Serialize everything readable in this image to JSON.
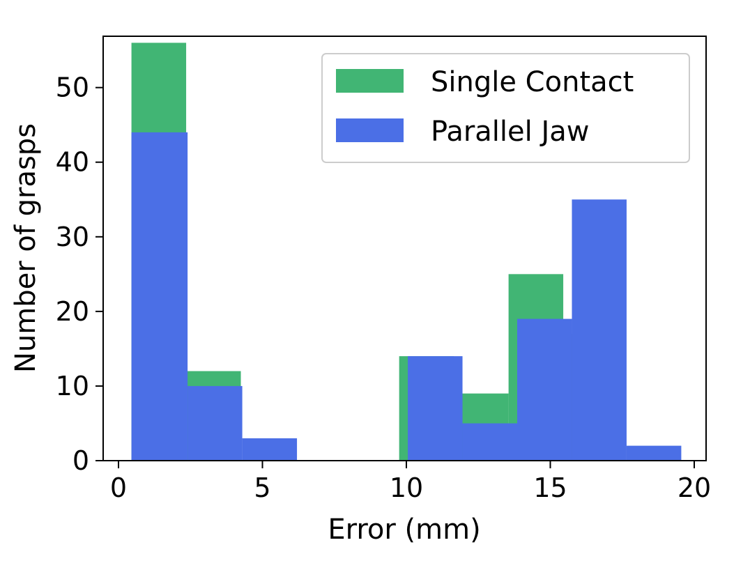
{
  "chart_data": {
    "type": "bar",
    "subtype": "overlapping-histogram",
    "title": "",
    "xlabel": "Error (mm)",
    "ylabel": "Number of grasps",
    "xlim": [
      0,
      20
    ],
    "ylim": [
      0,
      58
    ],
    "xticks": [
      0,
      5,
      10,
      15,
      20
    ],
    "yticks": [
      0,
      10,
      20,
      30,
      40,
      50
    ],
    "grid": false,
    "legend_position": "top-right",
    "series": [
      {
        "name": "Single Contact",
        "color": "#41b574",
        "bins": [
          {
            "x0": 0.45,
            "x1": 2.35,
            "value": 56
          },
          {
            "x0": 2.35,
            "x1": 4.25,
            "value": 12
          },
          {
            "x0": 9.75,
            "x1": 11.65,
            "value": 14
          },
          {
            "x0": 11.65,
            "x1": 13.55,
            "value": 9
          },
          {
            "x0": 13.55,
            "x1": 15.45,
            "value": 25
          },
          {
            "x0": 15.45,
            "x1": 17.35,
            "value": 17
          }
        ]
      },
      {
        "name": "Parallel Jaw",
        "color": "#4b6fe6",
        "bins": [
          {
            "x0": 0.45,
            "x1": 2.4,
            "value": 44
          },
          {
            "x0": 2.4,
            "x1": 4.3,
            "value": 10
          },
          {
            "x0": 4.3,
            "x1": 6.2,
            "value": 3
          },
          {
            "x0": 10.05,
            "x1": 11.95,
            "value": 14
          },
          {
            "x0": 11.95,
            "x1": 13.85,
            "value": 5
          },
          {
            "x0": 13.85,
            "x1": 15.75,
            "value": 19
          },
          {
            "x0": 15.75,
            "x1": 17.65,
            "value": 35
          },
          {
            "x0": 17.65,
            "x1": 19.55,
            "value": 2
          }
        ]
      }
    ]
  }
}
